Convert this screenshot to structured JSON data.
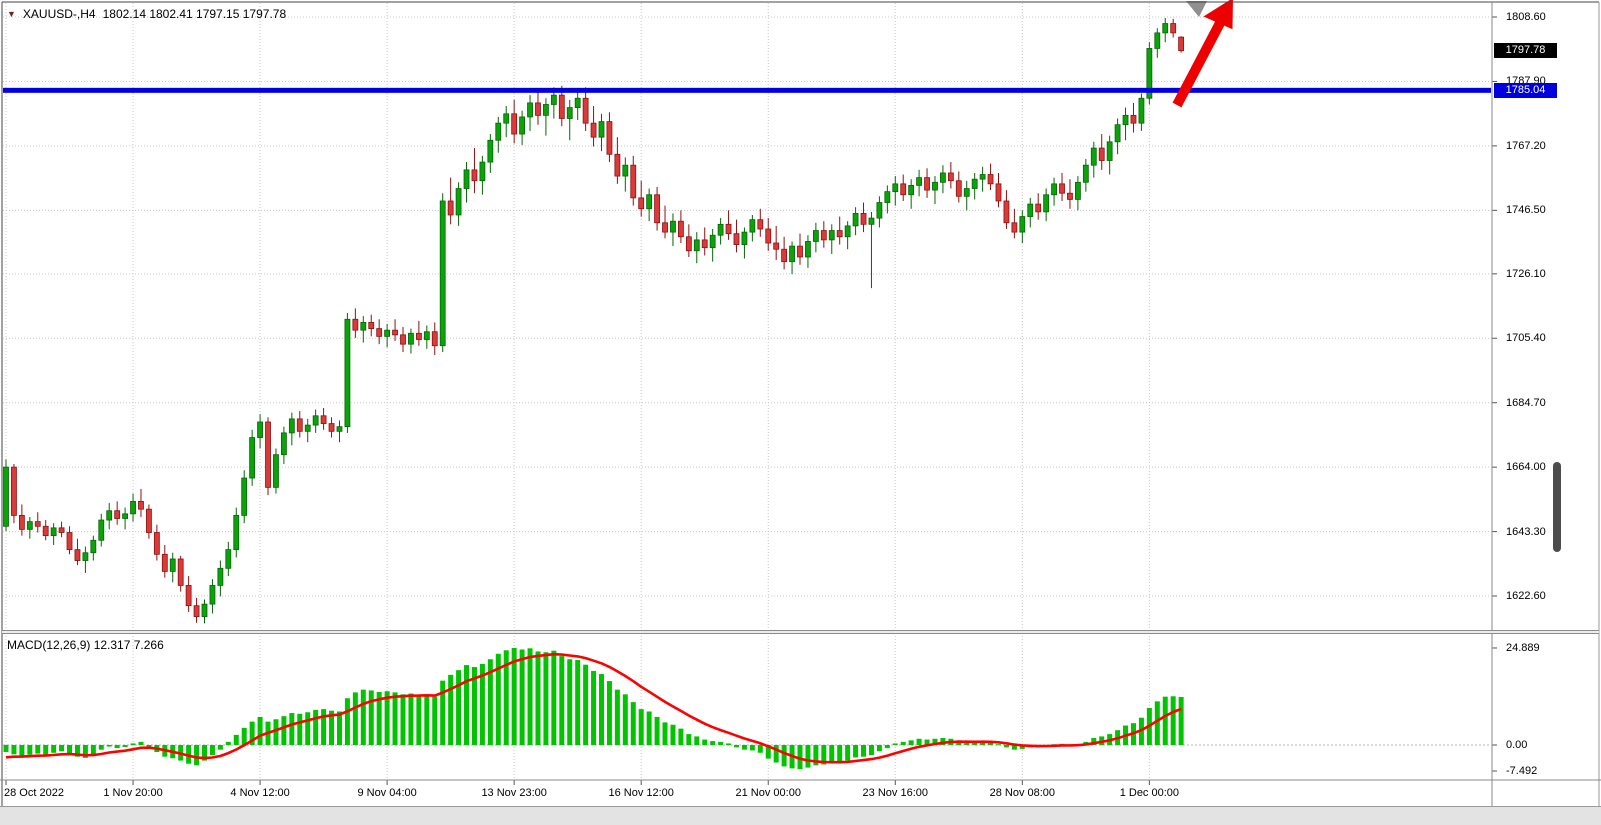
{
  "window": {
    "symbol_label": "XAUUSD-,H4",
    "ohlc": "1802.14 1802.41 1797.15 1797.78",
    "macd_label": "MACD(12,26,9) 12.317 7.266"
  },
  "price_axis": {
    "gridline_labels": [
      "1808.60",
      "1787.90",
      "1767.20",
      "1746.50",
      "1726.10",
      "1705.40",
      "1684.70",
      "1664.00",
      "1643.30",
      "1622.60"
    ],
    "current_price_tag": "1797.78",
    "line_price_tag": "1785.04",
    "macd_labels": [
      "24.889",
      "0.00",
      "-7.492"
    ]
  },
  "colors": {
    "up_fill": "#0aa30a",
    "up_stroke": "#056605",
    "down_fill": "#d93a3a",
    "down_stroke": "#8f1010",
    "macd_bar": "#00c400",
    "macd_signal": "#ff0000",
    "hline": "#0000e0",
    "arrow": "#ee0000",
    "grid": "#c9c9c9",
    "tag_current_bg": "#000000",
    "tag_line_bg": "#0000dd"
  },
  "chart_data": {
    "type": "candlestick",
    "symbol": "XAUUSD",
    "timeframe": "H4",
    "title": "XAUUSD-,H4",
    "last_ohlc": {
      "open": 1802.14,
      "high": 1802.41,
      "low": 1797.15,
      "close": 1797.78
    },
    "horizontal_line": 1785.04,
    "price_gridlines": [
      1808.6,
      1787.9,
      1767.2,
      1746.5,
      1726.1,
      1705.4,
      1684.7,
      1664.0,
      1643.3,
      1622.6
    ],
    "time_labels": [
      {
        "label": "28 Oct 2022",
        "candle": 0
      },
      {
        "label": "1 Nov 20:00",
        "candle": 16
      },
      {
        "label": "4 Nov 12:00",
        "candle": 32
      },
      {
        "label": "9 Nov 04:00",
        "candle": 48
      },
      {
        "label": "13 Nov 23:00",
        "candle": 64
      },
      {
        "label": "16 Nov 12:00",
        "candle": 80
      },
      {
        "label": "21 Nov 00:00",
        "candle": 96
      },
      {
        "label": "23 Nov 16:00",
        "candle": 112
      },
      {
        "label": "28 Nov 08:00",
        "candle": 128
      },
      {
        "label": "1 Dec 00:00",
        "candle": 144
      }
    ],
    "candles": [
      [
        1645.0,
        1666.5,
        1643.5,
        1664.0
      ],
      [
        1664.0,
        1665.0,
        1646.0,
        1648.5
      ],
      [
        1648.5,
        1652.0,
        1642.0,
        1644.0
      ],
      [
        1644.0,
        1648.0,
        1641.0,
        1646.5
      ],
      [
        1646.5,
        1649.5,
        1643.0,
        1645.0
      ],
      [
        1645.0,
        1647.0,
        1640.5,
        1642.0
      ],
      [
        1642.0,
        1646.0,
        1639.0,
        1644.5
      ],
      [
        1644.5,
        1646.5,
        1641.5,
        1643.0
      ],
      [
        1643.0,
        1645.0,
        1636.0,
        1637.5
      ],
      [
        1637.5,
        1641.0,
        1632.5,
        1634.0
      ],
      [
        1634.0,
        1638.5,
        1630.0,
        1636.5
      ],
      [
        1636.5,
        1642.0,
        1634.0,
        1640.5
      ],
      [
        1640.5,
        1649.0,
        1638.5,
        1647.0
      ],
      [
        1647.0,
        1652.5,
        1644.0,
        1650.0
      ],
      [
        1650.0,
        1653.0,
        1645.5,
        1647.5
      ],
      [
        1647.5,
        1651.0,
        1644.0,
        1649.0
      ],
      [
        1649.0,
        1655.5,
        1646.5,
        1653.0
      ],
      [
        1653.0,
        1657.0,
        1648.0,
        1650.5
      ],
      [
        1650.5,
        1652.0,
        1641.0,
        1643.0
      ],
      [
        1643.0,
        1645.5,
        1634.0,
        1636.0
      ],
      [
        1636.0,
        1639.0,
        1628.5,
        1630.5
      ],
      [
        1630.5,
        1636.5,
        1627.0,
        1634.5
      ],
      [
        1634.5,
        1635.5,
        1624.0,
        1626.0
      ],
      [
        1626.0,
        1629.0,
        1617.5,
        1619.5
      ],
      [
        1619.5,
        1622.0,
        1614.0,
        1616.0
      ],
      [
        1616.0,
        1621.5,
        1613.8,
        1620.0
      ],
      [
        1620.0,
        1628.0,
        1617.0,
        1626.0
      ],
      [
        1626.0,
        1634.0,
        1622.5,
        1631.5
      ],
      [
        1631.5,
        1640.0,
        1629.0,
        1637.5
      ],
      [
        1637.5,
        1651.0,
        1635.0,
        1648.5
      ],
      [
        1648.5,
        1663.0,
        1646.0,
        1660.5
      ],
      [
        1660.5,
        1676.0,
        1658.0,
        1673.5
      ],
      [
        1673.5,
        1681.0,
        1670.0,
        1678.5
      ],
      [
        1678.5,
        1680.0,
        1655.0,
        1657.5
      ],
      [
        1657.5,
        1670.0,
        1655.5,
        1668.0
      ],
      [
        1668.0,
        1677.0,
        1665.0,
        1675.0
      ],
      [
        1675.0,
        1681.5,
        1671.0,
        1679.5
      ],
      [
        1679.5,
        1682.0,
        1673.5,
        1675.5
      ],
      [
        1675.5,
        1679.5,
        1672.0,
        1677.5
      ],
      [
        1677.5,
        1682.5,
        1675.0,
        1680.5
      ],
      [
        1680.5,
        1683.0,
        1676.0,
        1678.0
      ],
      [
        1678.0,
        1680.0,
        1673.5,
        1675.5
      ],
      [
        1675.5,
        1679.0,
        1672.0,
        1677.0
      ],
      [
        1677.0,
        1713.5,
        1675.0,
        1711.5
      ],
      [
        1711.5,
        1715.0,
        1705.5,
        1708.0
      ],
      [
        1708.0,
        1712.5,
        1704.0,
        1710.5
      ],
      [
        1710.5,
        1713.0,
        1706.0,
        1708.5
      ],
      [
        1708.5,
        1711.5,
        1703.5,
        1706.0
      ],
      [
        1706.0,
        1710.0,
        1702.5,
        1708.0
      ],
      [
        1708.0,
        1711.5,
        1704.5,
        1706.5
      ],
      [
        1706.5,
        1709.0,
        1701.0,
        1703.5
      ],
      [
        1703.5,
        1708.5,
        1700.5,
        1707.0
      ],
      [
        1707.0,
        1711.0,
        1703.0,
        1705.0
      ],
      [
        1705.0,
        1709.5,
        1702.0,
        1707.5
      ],
      [
        1707.5,
        1710.5,
        1700.0,
        1703.0
      ],
      [
        1703.0,
        1752.0,
        1701.0,
        1749.5
      ],
      [
        1749.5,
        1757.0,
        1742.0,
        1745.0
      ],
      [
        1745.0,
        1755.5,
        1741.5,
        1753.5
      ],
      [
        1753.5,
        1762.0,
        1749.0,
        1759.5
      ],
      [
        1759.5,
        1766.5,
        1752.0,
        1756.0
      ],
      [
        1756.0,
        1764.0,
        1751.5,
        1762.0
      ],
      [
        1762.0,
        1771.0,
        1758.5,
        1769.0
      ],
      [
        1769.0,
        1776.5,
        1765.0,
        1774.5
      ],
      [
        1774.5,
        1780.0,
        1770.0,
        1777.5
      ],
      [
        1777.5,
        1782.0,
        1768.0,
        1771.0
      ],
      [
        1771.0,
        1778.5,
        1767.5,
        1776.5
      ],
      [
        1776.5,
        1783.5,
        1772.0,
        1781.0
      ],
      [
        1781.0,
        1784.5,
        1774.0,
        1777.0
      ],
      [
        1777.0,
        1782.5,
        1770.5,
        1780.5
      ],
      [
        1780.5,
        1786.0,
        1776.0,
        1783.5
      ],
      [
        1783.5,
        1786.5,
        1773.5,
        1776.0
      ],
      [
        1776.0,
        1782.0,
        1769.0,
        1779.5
      ],
      [
        1779.5,
        1785.5,
        1775.5,
        1782.5
      ],
      [
        1782.5,
        1786.0,
        1772.0,
        1774.5
      ],
      [
        1774.5,
        1780.0,
        1767.0,
        1770.0
      ],
      [
        1770.0,
        1777.5,
        1765.5,
        1775.0
      ],
      [
        1775.0,
        1778.0,
        1762.0,
        1764.5
      ],
      [
        1764.5,
        1770.0,
        1755.0,
        1757.5
      ],
      [
        1757.5,
        1763.5,
        1752.5,
        1761.0
      ],
      [
        1761.0,
        1764.0,
        1748.0,
        1750.5
      ],
      [
        1750.5,
        1756.0,
        1744.5,
        1747.0
      ],
      [
        1747.0,
        1753.5,
        1743.0,
        1751.5
      ],
      [
        1751.5,
        1754.0,
        1740.0,
        1742.5
      ],
      [
        1742.5,
        1748.0,
        1737.5,
        1739.5
      ],
      [
        1739.5,
        1745.5,
        1735.0,
        1743.0
      ],
      [
        1743.0,
        1746.5,
        1736.0,
        1738.0
      ],
      [
        1738.0,
        1742.0,
        1731.5,
        1733.5
      ],
      [
        1733.5,
        1739.5,
        1729.5,
        1737.0
      ],
      [
        1737.0,
        1741.0,
        1732.0,
        1734.5
      ],
      [
        1734.5,
        1740.5,
        1730.0,
        1738.5
      ],
      [
        1738.5,
        1744.0,
        1735.5,
        1742.0
      ],
      [
        1742.0,
        1746.5,
        1737.0,
        1739.0
      ],
      [
        1739.0,
        1743.5,
        1733.0,
        1735.5
      ],
      [
        1735.5,
        1741.0,
        1731.0,
        1739.5
      ],
      [
        1739.5,
        1745.0,
        1736.5,
        1743.5
      ],
      [
        1743.5,
        1747.0,
        1738.0,
        1740.5
      ],
      [
        1740.5,
        1744.0,
        1733.5,
        1736.0
      ],
      [
        1736.0,
        1741.5,
        1730.5,
        1734.0
      ],
      [
        1734.0,
        1738.0,
        1727.5,
        1730.0
      ],
      [
        1730.0,
        1736.5,
        1726.0,
        1735.0
      ],
      [
        1735.0,
        1739.0,
        1729.0,
        1731.5
      ],
      [
        1731.5,
        1738.5,
        1728.0,
        1736.5
      ],
      [
        1736.5,
        1742.5,
        1733.0,
        1740.0
      ],
      [
        1740.0,
        1743.0,
        1734.5,
        1737.0
      ],
      [
        1737.0,
        1742.0,
        1732.5,
        1740.0
      ],
      [
        1740.0,
        1744.5,
        1735.5,
        1738.0
      ],
      [
        1738.0,
        1743.0,
        1734.0,
        1741.5
      ],
      [
        1741.5,
        1747.5,
        1738.5,
        1745.5
      ],
      [
        1745.5,
        1749.0,
        1739.5,
        1742.0
      ],
      [
        1742.0,
        1746.0,
        1721.5,
        1744.0
      ],
      [
        1744.0,
        1751.0,
        1741.0,
        1749.0
      ],
      [
        1749.0,
        1754.5,
        1745.5,
        1752.5
      ],
      [
        1752.5,
        1757.5,
        1748.0,
        1755.0
      ],
      [
        1755.0,
        1758.0,
        1749.5,
        1751.5
      ],
      [
        1751.5,
        1756.5,
        1747.0,
        1754.5
      ],
      [
        1754.5,
        1759.5,
        1751.0,
        1757.0
      ],
      [
        1757.0,
        1760.0,
        1750.5,
        1753.0
      ],
      [
        1753.0,
        1757.5,
        1748.5,
        1755.5
      ],
      [
        1755.5,
        1761.0,
        1752.0,
        1758.5
      ],
      [
        1758.5,
        1762.0,
        1753.5,
        1756.0
      ],
      [
        1756.0,
        1759.0,
        1749.0,
        1751.0
      ],
      [
        1751.0,
        1756.0,
        1746.5,
        1753.5
      ],
      [
        1753.5,
        1758.5,
        1750.0,
        1756.5
      ],
      [
        1756.5,
        1760.5,
        1752.5,
        1758.0
      ],
      [
        1758.0,
        1761.5,
        1753.0,
        1755.0
      ],
      [
        1755.0,
        1758.5,
        1747.5,
        1749.5
      ],
      [
        1749.5,
        1753.0,
        1740.5,
        1742.5
      ],
      [
        1742.5,
        1747.0,
        1737.5,
        1739.5
      ],
      [
        1739.5,
        1746.5,
        1736.0,
        1744.5
      ],
      [
        1744.5,
        1750.5,
        1741.0,
        1748.5
      ],
      [
        1748.5,
        1752.0,
        1743.5,
        1746.0
      ],
      [
        1746.0,
        1753.5,
        1743.0,
        1751.5
      ],
      [
        1751.5,
        1757.0,
        1748.0,
        1755.0
      ],
      [
        1755.0,
        1758.5,
        1749.5,
        1752.0
      ],
      [
        1752.0,
        1756.5,
        1747.0,
        1750.0
      ],
      [
        1750.0,
        1757.5,
        1746.5,
        1755.5
      ],
      [
        1755.5,
        1763.0,
        1752.5,
        1761.0
      ],
      [
        1761.0,
        1768.5,
        1757.0,
        1766.5
      ],
      [
        1766.5,
        1771.0,
        1759.5,
        1762.5
      ],
      [
        1762.5,
        1770.5,
        1758.0,
        1768.5
      ],
      [
        1768.5,
        1776.0,
        1764.5,
        1774.0
      ],
      [
        1774.0,
        1779.5,
        1769.0,
        1777.0
      ],
      [
        1777.0,
        1781.0,
        1771.5,
        1774.5
      ],
      [
        1774.5,
        1784.0,
        1772.0,
        1782.5
      ],
      [
        1782.5,
        1800.5,
        1780.5,
        1798.5
      ],
      [
        1798.5,
        1805.0,
        1795.5,
        1803.5
      ],
      [
        1803.5,
        1808.3,
        1800.5,
        1806.5
      ],
      [
        1806.5,
        1808.0,
        1802.0,
        1803.5
      ],
      [
        1802.14,
        1802.41,
        1797.15,
        1797.78
      ]
    ],
    "macd": {
      "parameters": "12,26,9",
      "current_macd": 12.317,
      "current_signal": 7.266,
      "axis_max": 24.889,
      "axis_min": -7.492,
      "signal_period": 9,
      "histogram": [
        -1.8,
        -2.4,
        -2.8,
        -2.5,
        -2.2,
        -2.6,
        -2.0,
        -1.6,
        -2.2,
        -3.0,
        -3.3,
        -2.4,
        -1.2,
        -0.4,
        -0.8,
        -0.5,
        0.4,
        0.8,
        -0.6,
        -1.8,
        -3.0,
        -3.4,
        -4.0,
        -4.8,
        -5.2,
        -4.0,
        -2.6,
        -1.2,
        0.8,
        2.6,
        4.4,
        6.0,
        7.2,
        6.0,
        6.6,
        7.4,
        8.2,
        8.0,
        8.4,
        9.0,
        9.2,
        8.8,
        8.6,
        12.0,
        13.5,
        14.2,
        14.0,
        13.6,
        13.8,
        13.5,
        13.0,
        13.2,
        12.8,
        13.0,
        12.4,
        16.5,
        18.0,
        19.2,
        20.5,
        20.0,
        20.8,
        22.0,
        23.4,
        24.3,
        24.889,
        24.5,
        24.8,
        24.0,
        23.8,
        24.2,
        22.8,
        22.0,
        21.8,
        20.6,
        19.0,
        18.2,
        16.4,
        14.2,
        13.0,
        11.0,
        9.2,
        8.6,
        7.2,
        5.8,
        5.2,
        4.2,
        2.8,
        2.2,
        1.4,
        1.0,
        0.8,
        0.4,
        -0.6,
        -1.2,
        -1.4,
        -2.0,
        -3.5,
        -4.5,
        -5.5,
        -6.0,
        -6.2,
        -5.8,
        -5.2,
        -5.0,
        -4.6,
        -4.4,
        -4.0,
        -3.2,
        -3.0,
        -2.6,
        -1.6,
        -0.8,
        0.4,
        0.8,
        1.2,
        1.6,
        1.4,
        1.6,
        1.8,
        1.6,
        1.2,
        0.8,
        0.8,
        0.9,
        0.7,
        0.2,
        -0.6,
        -1.2,
        -1.0,
        -0.6,
        -0.6,
        -0.3,
        0.2,
        0.3,
        -0.2,
        0.2,
        0.8,
        1.8,
        2.2,
        2.8,
        3.8,
        5.0,
        5.6,
        7.0,
        9.5,
        11.2,
        12.4,
        12.5,
        12.317
      ]
    },
    "annotations": {
      "horizontal_line_price": 1785.04,
      "arrow": {
        "direction": "up-right",
        "color": "red"
      }
    }
  }
}
